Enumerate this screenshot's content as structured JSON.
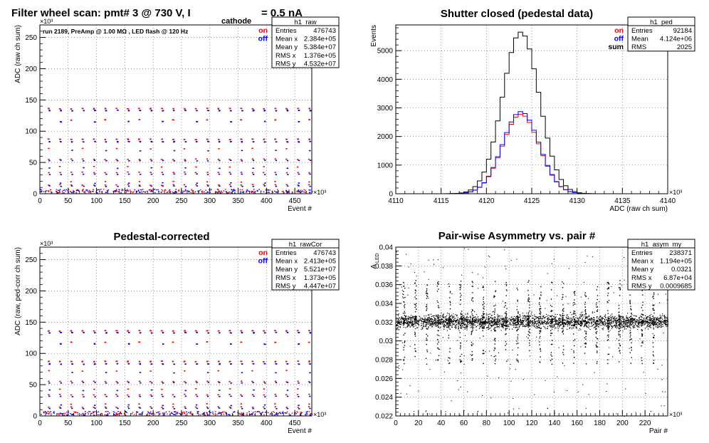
{
  "chart_data": [
    {
      "type": "scatter",
      "title": "Filter wheel scan: pmt#   3 @   730 V, I",
      "title_sub": "cathode",
      "title_tail": "= 0.5 nA",
      "annotation": "run 2189, PreAmp @ 1.00 MΩ , LED flash @  120 Hz",
      "xlabel": "Event #",
      "ylabel": "ADC (raw ch sum)",
      "x_exponent": "×10³",
      "y_exponent": "×10³",
      "xlim": [
        0,
        480
      ],
      "ylim": [
        0,
        270
      ],
      "x_ticks": [
        "0",
        "50",
        "100",
        "150",
        "200",
        "250",
        "300",
        "350",
        "400",
        "450"
      ],
      "y_ticks": [
        "0",
        "50",
        "100",
        "150",
        "200",
        "250"
      ],
      "grid": true,
      "legend": [
        {
          "label": "on",
          "color": "#ff0000"
        },
        {
          "label": "off",
          "color": "#0000ff"
        }
      ],
      "legend_position": "top-right",
      "stats_title": "h1_raw",
      "stats": [
        [
          "Entries",
          "476743"
        ],
        [
          "Mean x",
          "2.384e+05"
        ],
        [
          "Mean y",
          "5.384e+07"
        ],
        [
          "RMS x",
          "1.376e+05"
        ],
        [
          "RMS y",
          "4.532e+07"
        ]
      ],
      "series": [
        {
          "name": "on",
          "color": "#ff0000",
          "step_y": [
            137,
            119,
            88,
            73,
            56,
            44,
            35,
            20,
            15,
            5
          ]
        },
        {
          "name": "off",
          "color": "#0000ff",
          "step_y": [
            134,
            116,
            84,
            70,
            54,
            42,
            32,
            18,
            13,
            3
          ]
        }
      ],
      "step_x": [
        14,
        34,
        54,
        74,
        94,
        114,
        134,
        154,
        174,
        194,
        214,
        234,
        254,
        274,
        294,
        314,
        334,
        354,
        374,
        394,
        414,
        434,
        454,
        474
      ]
    },
    {
      "type": "histogram",
      "title": "Shutter closed (pedestal data)",
      "xlabel": "ADC (raw ch sum)",
      "ylabel": "Events",
      "x_exponent": "×10³",
      "xlim": [
        4110,
        4140
      ],
      "ylim": [
        0,
        5900
      ],
      "x_ticks": [
        "4110",
        "4115",
        "4120",
        "4125",
        "4130",
        "4135",
        "4140"
      ],
      "y_ticks": [
        "0",
        "1000",
        "2000",
        "3000",
        "4000",
        "5000"
      ],
      "grid": true,
      "legend": [
        {
          "label": "on",
          "color": "#ff0000"
        },
        {
          "label": "off",
          "color": "#0000ff"
        },
        {
          "label": "sum",
          "color": "#000000"
        }
      ],
      "legend_position": "top-right",
      "stats_title": "h1_ped",
      "stats": [
        [
          "Entries",
          "92184"
        ],
        [
          "Mean",
          "4.124e+06"
        ],
        [
          "RMS",
          "2025"
        ]
      ],
      "series": [
        {
          "name": "sum",
          "color": "#000000",
          "mean": 4123.8,
          "sigma": 2.02,
          "peak": 5650
        },
        {
          "name": "on",
          "color": "#ff0000",
          "mean": 4123.8,
          "sigma": 2.02,
          "peak": 2780
        },
        {
          "name": "off",
          "color": "#0000ff",
          "mean": 4123.8,
          "sigma": 2.02,
          "peak": 2870
        }
      ]
    },
    {
      "type": "scatter",
      "title": "Pedestal-corrected",
      "xlabel": "Event #",
      "ylabel": "ADC (raw, ped-corr ch sum)",
      "x_exponent": "×10³",
      "y_exponent": "×10³",
      "xlim": [
        0,
        480
      ],
      "ylim": [
        0,
        270
      ],
      "x_ticks": [
        "0",
        "50",
        "100",
        "150",
        "200",
        "250",
        "300",
        "350",
        "400",
        "450"
      ],
      "y_ticks": [
        "0",
        "50",
        "100",
        "150",
        "200",
        "250"
      ],
      "grid": true,
      "legend": [
        {
          "label": "on",
          "color": "#ff0000"
        },
        {
          "label": "off",
          "color": "#0000ff"
        }
      ],
      "legend_position": "top-right",
      "stats_title": "h1_rawCor",
      "stats": [
        [
          "Entries",
          "476743"
        ],
        [
          "Mean x",
          "2.413e+05"
        ],
        [
          "Mean y",
          "5.521e+07"
        ],
        [
          "RMS x",
          "1.373e+05"
        ],
        [
          "RMS y",
          "4.447e+07"
        ]
      ],
      "series": [
        {
          "name": "on",
          "color": "#ff0000",
          "step_y": [
            137,
            119,
            88,
            73,
            56,
            44,
            35,
            20,
            15,
            5
          ]
        },
        {
          "name": "off",
          "color": "#0000ff",
          "step_y": [
            134,
            116,
            84,
            70,
            54,
            42,
            32,
            18,
            13,
            3
          ]
        }
      ],
      "step_x": [
        14,
        34,
        54,
        74,
        94,
        114,
        134,
        154,
        174,
        194,
        214,
        234,
        254,
        274,
        294,
        314,
        334,
        354,
        374,
        394,
        414,
        434,
        454,
        474
      ]
    },
    {
      "type": "scatter",
      "title": "Pair-wise Asymmetry vs. pair #",
      "xlabel": "Pair #",
      "ylabel": "A",
      "ylabel_sub": "LED",
      "x_exponent": "×10³",
      "xlim": [
        0,
        240
      ],
      "ylim": [
        0.022,
        0.04
      ],
      "x_ticks": [
        "0",
        "20",
        "40",
        "60",
        "80",
        "100",
        "120",
        "140",
        "160",
        "180",
        "200",
        "220"
      ],
      "y_ticks": [
        "0.022",
        "0.024",
        "0.026",
        "0.028",
        "0.03",
        "0.032",
        "0.034",
        "0.036",
        "0.038",
        "0.04"
      ],
      "grid": true,
      "stats_title": "h1_asym_my",
      "stats": [
        [
          "Entries",
          "238371"
        ],
        [
          "Mean x",
          "1.194e+05"
        ],
        [
          "Mean y",
          "0.0321"
        ],
        [
          "RMS x",
          "6.87e+04"
        ],
        [
          "RMS y",
          "0.0009685"
        ]
      ],
      "band_center": 0.0321,
      "band_halfwidth": 0.0008,
      "spikes_x": [
        7,
        17,
        27,
        37,
        47,
        57,
        67,
        77,
        87,
        97,
        107,
        117,
        127,
        137,
        147,
        157,
        167,
        177,
        187,
        197,
        207,
        217,
        227
      ],
      "spikes_y": [
        0.0365,
        0.0275
      ]
    }
  ]
}
